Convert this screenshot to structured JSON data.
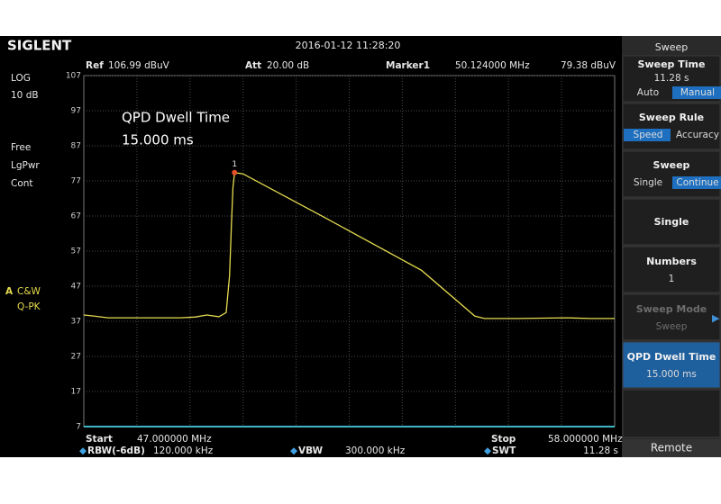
{
  "header": {
    "brand": "SIGLENT",
    "datetime": "2016-01-12  11:28:20"
  },
  "info": {
    "ref_label": "Ref",
    "ref": "106.99 dBuV",
    "att_label": "Att",
    "att": "20.00 dB",
    "marker_label": "Marker1",
    "marker_freq": "50.124000 MHz",
    "marker_level": "79.38 dBuV"
  },
  "left": {
    "scale": "LOG",
    "per_div": "10 dB",
    "trigger": "Free",
    "average": "LgPwr",
    "mode": "Cont",
    "trace": "A",
    "trace_mode": "C&W",
    "detector": "Q-PK"
  },
  "annotation": [
    "QPD Dwell Time",
    "15.000 ms"
  ],
  "plot": {
    "ylim": [
      7,
      107
    ],
    "yticks": [
      107,
      97,
      87,
      77,
      67,
      57,
      47,
      37,
      27,
      17,
      7
    ],
    "xlim": [
      47,
      58
    ],
    "grid": true,
    "color": "#e6dc50",
    "trace": {
      "x": [
        47.0,
        47.2,
        47.5,
        48.0,
        48.5,
        49.0,
        49.3,
        49.55,
        49.8,
        49.95,
        50.02,
        50.06,
        50.09,
        50.124,
        50.3,
        52.0,
        54.0,
        55.1,
        55.3,
        56.0,
        57.0,
        57.5,
        58.0
      ],
      "values": [
        38.8,
        38.5,
        38.0,
        38.0,
        38.0,
        38.0,
        38.2,
        38.8,
        38.3,
        39.5,
        50,
        65,
        75,
        79.38,
        79.0,
        66.5,
        51.5,
        38.5,
        37.8,
        37.8,
        38.0,
        37.8,
        37.8
      ]
    },
    "marker": {
      "label": "1",
      "x": 50.124,
      "y": 79.38,
      "color": "#e8502a"
    }
  },
  "footer": {
    "start_label": "Start",
    "start": "47.000000 MHz",
    "stop_label": "Stop",
    "stop": "58.000000 MHz",
    "rbw_label": "RBW(-6dB)",
    "rbw": "120.000 kHz",
    "vbw_label": "VBW",
    "vbw": "300.000 kHz",
    "swt_label": "SWT",
    "swt": "11.28 s"
  },
  "menu": {
    "title": "Sweep",
    "items": [
      {
        "label": "Sweep Time",
        "value": "11.28 s",
        "options": [
          "Auto",
          "Manual"
        ],
        "selected": 1
      },
      {
        "label": "Sweep Rule",
        "options": [
          "Speed",
          "Accuracy"
        ],
        "selected": 0
      },
      {
        "label": "Sweep",
        "options": [
          "Single",
          "Continue"
        ],
        "selected": 1
      },
      {
        "label": "Single"
      },
      {
        "label": "Numbers",
        "value": "1"
      },
      {
        "label": "Sweep Mode",
        "value": "Sweep",
        "disabled": true
      },
      {
        "label": "QPD Dwell Time",
        "value": "15.000 ms",
        "active": true
      }
    ],
    "footer": "Remote"
  }
}
